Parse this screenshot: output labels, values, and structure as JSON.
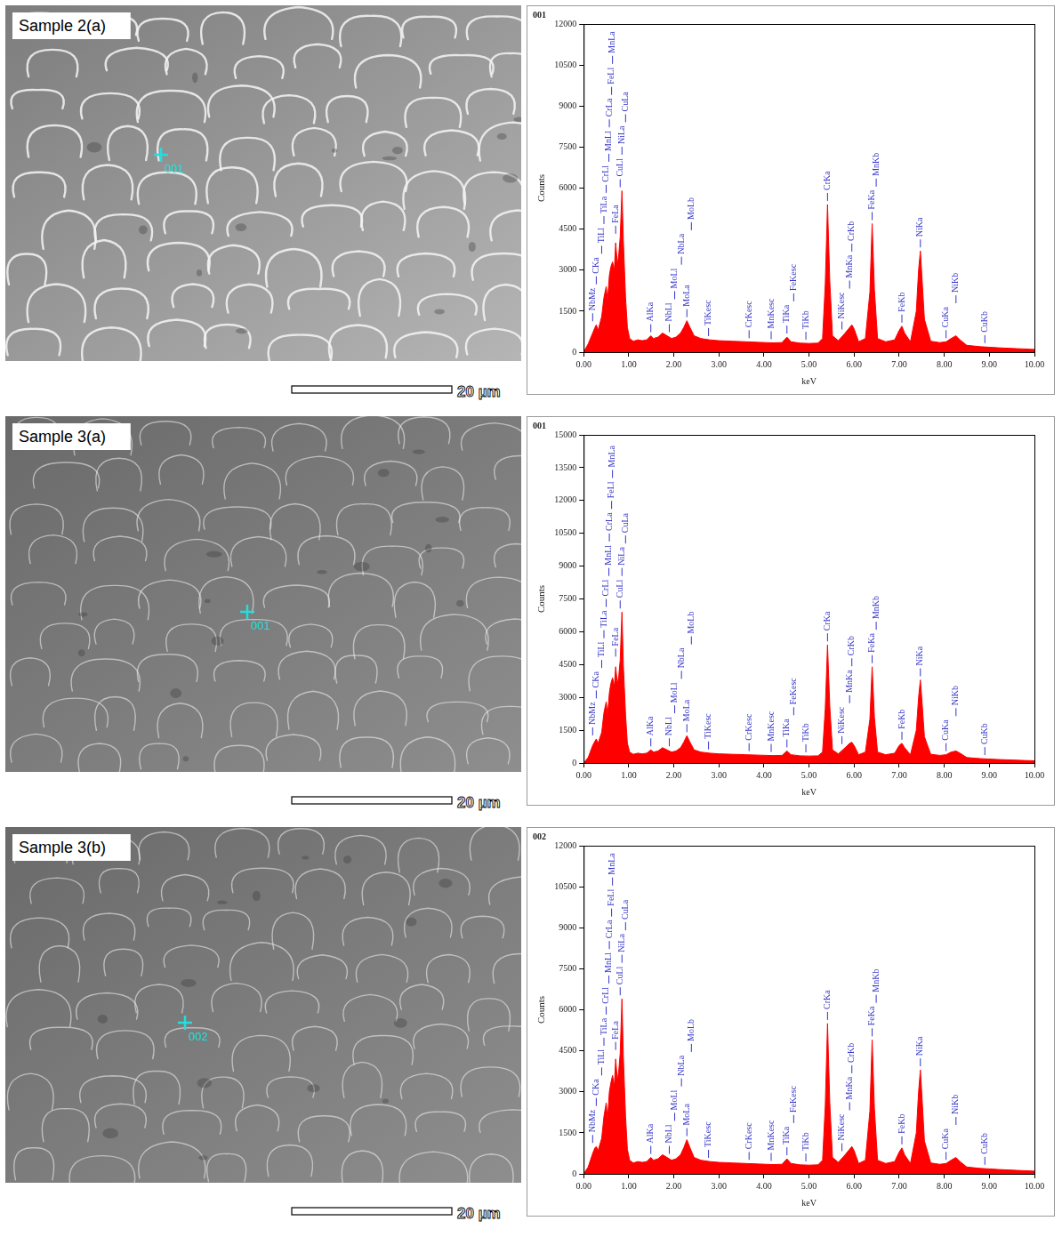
{
  "chart_data": [
    {
      "type": "area",
      "title": "001",
      "x_label": "keV",
      "y_label": "Counts",
      "color": "#ff0000",
      "xlim": [
        0,
        10
      ],
      "ylim": [
        0,
        12000
      ],
      "xticks": [
        {
          "value": 0,
          "label": "0.00"
        },
        {
          "value": 1,
          "label": "1.00"
        },
        {
          "value": 2,
          "label": "2.00"
        },
        {
          "value": 3,
          "label": "3.00"
        },
        {
          "value": 4,
          "label": "4.00"
        },
        {
          "value": 5,
          "label": "5.00"
        },
        {
          "value": 6,
          "label": "6.00"
        },
        {
          "value": 7,
          "label": "7.00"
        },
        {
          "value": 8,
          "label": "8.00"
        },
        {
          "value": 9,
          "label": "9.00"
        },
        {
          "value": 10,
          "label": "10.00"
        }
      ],
      "yticks": [
        0,
        1500,
        3000,
        4500,
        6000,
        7500,
        9000,
        10500,
        12000
      ],
      "x": [
        0.0,
        0.1,
        0.2,
        0.25,
        0.28,
        0.32,
        0.4,
        0.45,
        0.5,
        0.53,
        0.57,
        0.6,
        0.64,
        0.68,
        0.71,
        0.75,
        0.78,
        0.81,
        0.85,
        0.88,
        0.93,
        0.97,
        1.02,
        1.1,
        1.2,
        1.3,
        1.4,
        1.49,
        1.55,
        1.65,
        1.75,
        1.85,
        1.95,
        2.05,
        2.15,
        2.22,
        2.29,
        2.36,
        2.45,
        2.6,
        2.8,
        3.0,
        3.3,
        3.6,
        3.9,
        4.2,
        4.4,
        4.51,
        4.6,
        4.8,
        5.0,
        5.2,
        5.3,
        5.36,
        5.41,
        5.46,
        5.52,
        5.65,
        5.8,
        5.9,
        5.95,
        6.0,
        6.1,
        6.25,
        6.35,
        6.4,
        6.45,
        6.52,
        6.7,
        6.9,
        7.0,
        7.06,
        7.12,
        7.25,
        7.38,
        7.43,
        7.47,
        7.51,
        7.56,
        7.7,
        7.9,
        8.04,
        8.15,
        8.26,
        8.35,
        8.5,
        8.8,
        9.2,
        9.6,
        10.0
      ],
      "values": [
        0,
        300,
        700,
        900,
        1000,
        800,
        1300,
        2000,
        2400,
        1900,
        2800,
        3100,
        3300,
        3000,
        4000,
        3200,
        3600,
        4200,
        5900,
        4100,
        2000,
        900,
        500,
        400,
        450,
        420,
        450,
        600,
        500,
        550,
        700,
        600,
        500,
        550,
        700,
        900,
        1150,
        900,
        600,
        500,
        450,
        420,
        400,
        380,
        360,
        340,
        350,
        550,
        380,
        330,
        320,
        330,
        500,
        2500,
        5400,
        2600,
        600,
        420,
        700,
        900,
        1000,
        850,
        380,
        500,
        2200,
        4700,
        2300,
        500,
        380,
        450,
        800,
        950,
        700,
        380,
        1500,
        3000,
        3700,
        2600,
        1200,
        400,
        350,
        380,
        500,
        600,
        450,
        250,
        200,
        160,
        130,
        100
      ],
      "peak_labels": [
        {
          "label": "NbMz",
          "x": 0.2
        },
        {
          "label": "CKa",
          "x": 0.28
        },
        {
          "label": "TiLl",
          "x": 0.4
        },
        {
          "label": "TiLa",
          "x": 0.45
        },
        {
          "label": "CrLl",
          "x": 0.5
        },
        {
          "label": "MnLl",
          "x": 0.56
        },
        {
          "label": "CrLa",
          "x": 0.57
        },
        {
          "label": "FeLl",
          "x": 0.62
        },
        {
          "label": "MnLa",
          "x": 0.64
        },
        {
          "label": "FeLa",
          "x": 0.71
        },
        {
          "label": "CuLl",
          "x": 0.81
        },
        {
          "label": "NiLa",
          "x": 0.85
        },
        {
          "label": "CuLa",
          "x": 0.93
        },
        {
          "label": "AlKa",
          "x": 1.49
        },
        {
          "label": "NbLl",
          "x": 1.9
        },
        {
          "label": "MoLl",
          "x": 2.02
        },
        {
          "label": "NbLa",
          "x": 2.17
        },
        {
          "label": "MoLa",
          "x": 2.29
        },
        {
          "label": "MoLb",
          "x": 2.39
        },
        {
          "label": "TiKesc",
          "x": 2.77
        },
        {
          "label": "CrKesc",
          "x": 3.67
        },
        {
          "label": "MnKesc",
          "x": 4.16
        },
        {
          "label": "TiKa",
          "x": 4.51
        },
        {
          "label": "FeKesc",
          "x": 4.66
        },
        {
          "label": "TiKb",
          "x": 4.93
        },
        {
          "label": "CrKa",
          "x": 5.41
        },
        {
          "label": "NiKesc",
          "x": 5.73
        },
        {
          "label": "MnKa",
          "x": 5.9
        },
        {
          "label": "CrKb",
          "x": 5.95
        },
        {
          "label": "FeKa",
          "x": 6.4
        },
        {
          "label": "MnKb",
          "x": 6.49
        },
        {
          "label": "FeKb",
          "x": 7.06
        },
        {
          "label": "NiKa",
          "x": 7.47
        },
        {
          "label": "CuKa",
          "x": 8.04
        },
        {
          "label": "NiKb",
          "x": 8.26
        },
        {
          "label": "CuKb",
          "x": 8.9
        }
      ]
    },
    {
      "type": "area",
      "title": "001",
      "x_label": "keV",
      "y_label": "Counts",
      "color": "#ff0000",
      "xlim": [
        0,
        10
      ],
      "ylim": [
        0,
        15000
      ],
      "xticks": [
        {
          "value": 0,
          "label": "0.00"
        },
        {
          "value": 1,
          "label": "1.00"
        },
        {
          "value": 2,
          "label": "2.00"
        },
        {
          "value": 3,
          "label": "3.00"
        },
        {
          "value": 4,
          "label": "4.00"
        },
        {
          "value": 5,
          "label": "5.00"
        },
        {
          "value": 6,
          "label": "6.00"
        },
        {
          "value": 7,
          "label": "7.00"
        },
        {
          "value": 8,
          "label": "8.00"
        },
        {
          "value": 9,
          "label": "9.00"
        },
        {
          "value": 10,
          "label": "10.00"
        }
      ],
      "yticks": [
        0,
        1500,
        3000,
        4500,
        6000,
        7500,
        9000,
        10500,
        12000,
        13500,
        15000
      ],
      "x": [
        0.0,
        0.1,
        0.2,
        0.25,
        0.28,
        0.32,
        0.4,
        0.45,
        0.5,
        0.53,
        0.57,
        0.6,
        0.64,
        0.68,
        0.71,
        0.75,
        0.78,
        0.81,
        0.85,
        0.88,
        0.93,
        0.97,
        1.02,
        1.1,
        1.2,
        1.3,
        1.4,
        1.49,
        1.55,
        1.65,
        1.75,
        1.85,
        1.95,
        2.05,
        2.15,
        2.22,
        2.29,
        2.36,
        2.45,
        2.6,
        2.8,
        3.0,
        3.3,
        3.6,
        3.9,
        4.2,
        4.4,
        4.51,
        4.6,
        4.8,
        5.0,
        5.2,
        5.3,
        5.36,
        5.41,
        5.46,
        5.52,
        5.65,
        5.8,
        5.9,
        5.95,
        6.0,
        6.1,
        6.25,
        6.35,
        6.4,
        6.45,
        6.52,
        6.7,
        6.9,
        7.0,
        7.06,
        7.12,
        7.25,
        7.38,
        7.43,
        7.47,
        7.51,
        7.56,
        7.7,
        7.9,
        8.04,
        8.15,
        8.26,
        8.35,
        8.5,
        8.8,
        9.2,
        9.6,
        10.0
      ],
      "values": [
        0,
        250,
        800,
        1000,
        1100,
        900,
        1400,
        2300,
        2800,
        2200,
        3200,
        3600,
        3900,
        3500,
        4400,
        3600,
        4000,
        4700,
        6900,
        4500,
        2200,
        900,
        500,
        400,
        450,
        420,
        450,
        600,
        500,
        550,
        700,
        600,
        500,
        550,
        700,
        950,
        1250,
        950,
        600,
        500,
        450,
        420,
        400,
        380,
        360,
        340,
        350,
        550,
        380,
        330,
        320,
        330,
        500,
        2500,
        5400,
        2600,
        600,
        420,
        700,
        900,
        950,
        800,
        380,
        500,
        2000,
        4400,
        2100,
        500,
        380,
        450,
        800,
        900,
        700,
        380,
        1500,
        3000,
        3800,
        2700,
        1200,
        400,
        350,
        380,
        500,
        550,
        450,
        250,
        200,
        160,
        130,
        100
      ],
      "peak_labels": [
        {
          "label": "NbMz",
          "x": 0.2
        },
        {
          "label": "CKa",
          "x": 0.28
        },
        {
          "label": "TiLl",
          "x": 0.4
        },
        {
          "label": "TiLa",
          "x": 0.45
        },
        {
          "label": "CrLl",
          "x": 0.5
        },
        {
          "label": "MnLl",
          "x": 0.56
        },
        {
          "label": "CrLa",
          "x": 0.57
        },
        {
          "label": "FeLl",
          "x": 0.62
        },
        {
          "label": "MnLa",
          "x": 0.64
        },
        {
          "label": "FeLa",
          "x": 0.71
        },
        {
          "label": "CuLl",
          "x": 0.81
        },
        {
          "label": "NiLa",
          "x": 0.85
        },
        {
          "label": "CuLa",
          "x": 0.93
        },
        {
          "label": "AlKa",
          "x": 1.49
        },
        {
          "label": "NbLl",
          "x": 1.9
        },
        {
          "label": "MoLl",
          "x": 2.02
        },
        {
          "label": "NbLa",
          "x": 2.17
        },
        {
          "label": "MoLa",
          "x": 2.29
        },
        {
          "label": "MoLb",
          "x": 2.39
        },
        {
          "label": "TiKesc",
          "x": 2.77
        },
        {
          "label": "CrKesc",
          "x": 3.67
        },
        {
          "label": "MnKesc",
          "x": 4.16
        },
        {
          "label": "TiKa",
          "x": 4.51
        },
        {
          "label": "FeKesc",
          "x": 4.66
        },
        {
          "label": "TiKb",
          "x": 4.93
        },
        {
          "label": "CrKa",
          "x": 5.41
        },
        {
          "label": "NiKesc",
          "x": 5.73
        },
        {
          "label": "MnKa",
          "x": 5.9
        },
        {
          "label": "CrKb",
          "x": 5.95
        },
        {
          "label": "FeKa",
          "x": 6.4
        },
        {
          "label": "MnKb",
          "x": 6.49
        },
        {
          "label": "FeKb",
          "x": 7.06
        },
        {
          "label": "NiKa",
          "x": 7.47
        },
        {
          "label": "CuKa",
          "x": 8.04
        },
        {
          "label": "NiKb",
          "x": 8.26
        },
        {
          "label": "CuKb",
          "x": 8.9
        }
      ]
    },
    {
      "type": "area",
      "title": "002",
      "x_label": "keV",
      "y_label": "Counts",
      "color": "#ff0000",
      "xlim": [
        0,
        10
      ],
      "ylim": [
        0,
        12000
      ],
      "xticks": [
        {
          "value": 0,
          "label": "0.00"
        },
        {
          "value": 1,
          "label": "1.00"
        },
        {
          "value": 2,
          "label": "2.00"
        },
        {
          "value": 3,
          "label": "3.00"
        },
        {
          "value": 4,
          "label": "4.00"
        },
        {
          "value": 5,
          "label": "5.00"
        },
        {
          "value": 6,
          "label": "6.00"
        },
        {
          "value": 7,
          "label": "7.00"
        },
        {
          "value": 8,
          "label": "8.00"
        },
        {
          "value": 9,
          "label": "9.00"
        },
        {
          "value": 10,
          "label": "10.00"
        }
      ],
      "yticks": [
        0,
        1500,
        3000,
        4500,
        6000,
        7500,
        9000,
        10500,
        12000
      ],
      "x": [
        0.0,
        0.1,
        0.2,
        0.25,
        0.28,
        0.32,
        0.4,
        0.45,
        0.5,
        0.53,
        0.57,
        0.6,
        0.64,
        0.68,
        0.71,
        0.75,
        0.78,
        0.81,
        0.85,
        0.88,
        0.93,
        0.97,
        1.02,
        1.1,
        1.2,
        1.3,
        1.4,
        1.49,
        1.55,
        1.65,
        1.75,
        1.85,
        1.95,
        2.05,
        2.15,
        2.22,
        2.29,
        2.36,
        2.45,
        2.6,
        2.8,
        3.0,
        3.3,
        3.6,
        3.9,
        4.2,
        4.4,
        4.51,
        4.6,
        4.8,
        5.0,
        5.2,
        5.3,
        5.36,
        5.41,
        5.46,
        5.52,
        5.65,
        5.8,
        5.9,
        5.95,
        6.0,
        6.1,
        6.25,
        6.35,
        6.4,
        6.45,
        6.52,
        6.7,
        6.9,
        7.0,
        7.06,
        7.12,
        7.25,
        7.38,
        7.43,
        7.47,
        7.51,
        7.56,
        7.7,
        7.9,
        8.04,
        8.15,
        8.26,
        8.35,
        8.5,
        8.8,
        9.2,
        9.6,
        10.0
      ],
      "values": [
        0,
        250,
        750,
        950,
        1000,
        850,
        1300,
        2100,
        2600,
        2000,
        3000,
        3300,
        3600,
        3200,
        4200,
        3400,
        3800,
        4400,
        6400,
        4300,
        2100,
        900,
        500,
        400,
        450,
        420,
        450,
        600,
        500,
        550,
        700,
        600,
        500,
        550,
        700,
        950,
        1250,
        950,
        600,
        500,
        450,
        420,
        400,
        380,
        360,
        340,
        350,
        550,
        380,
        330,
        320,
        330,
        500,
        2500,
        5500,
        2600,
        600,
        420,
        700,
        900,
        1000,
        850,
        380,
        500,
        2300,
        4900,
        2400,
        500,
        380,
        450,
        800,
        950,
        700,
        380,
        1500,
        3000,
        3800,
        2700,
        1200,
        400,
        350,
        380,
        500,
        600,
        450,
        250,
        200,
        160,
        130,
        100
      ],
      "peak_labels": [
        {
          "label": "NbMz",
          "x": 0.2
        },
        {
          "label": "CKa",
          "x": 0.28
        },
        {
          "label": "TiLl",
          "x": 0.4
        },
        {
          "label": "TiLa",
          "x": 0.45
        },
        {
          "label": "CrLl",
          "x": 0.5
        },
        {
          "label": "MnLl",
          "x": 0.56
        },
        {
          "label": "CrLa",
          "x": 0.57
        },
        {
          "label": "FeLl",
          "x": 0.62
        },
        {
          "label": "MnLa",
          "x": 0.64
        },
        {
          "label": "FeLa",
          "x": 0.71
        },
        {
          "label": "CuLl",
          "x": 0.81
        },
        {
          "label": "NiLa",
          "x": 0.85
        },
        {
          "label": "CuLa",
          "x": 0.93
        },
        {
          "label": "AlKa",
          "x": 1.49
        },
        {
          "label": "NbLl",
          "x": 1.9
        },
        {
          "label": "MoLl",
          "x": 2.02
        },
        {
          "label": "NbLa",
          "x": 2.17
        },
        {
          "label": "MoLa",
          "x": 2.29
        },
        {
          "label": "MoLb",
          "x": 2.39
        },
        {
          "label": "TiKesc",
          "x": 2.77
        },
        {
          "label": "CrKesc",
          "x": 3.67
        },
        {
          "label": "MnKesc",
          "x": 4.16
        },
        {
          "label": "TiKa",
          "x": 4.51
        },
        {
          "label": "FeKesc",
          "x": 4.66
        },
        {
          "label": "TiKb",
          "x": 4.93
        },
        {
          "label": "CrKa",
          "x": 5.41
        },
        {
          "label": "NiKesc",
          "x": 5.73
        },
        {
          "label": "MnKa",
          "x": 5.9
        },
        {
          "label": "CrKb",
          "x": 5.95
        },
        {
          "label": "FeKa",
          "x": 6.4
        },
        {
          "label": "MnKb",
          "x": 6.49
        },
        {
          "label": "FeKb",
          "x": 7.06
        },
        {
          "label": "NiKa",
          "x": 7.47
        },
        {
          "label": "CuKa",
          "x": 8.04
        },
        {
          "label": "NiKb",
          "x": 8.26
        },
        {
          "label": "CuKb",
          "x": 8.9
        }
      ]
    }
  ],
  "micrographs": [
    {
      "label": "Sample 2(a)",
      "point": "001",
      "scale_bar": "20 µm"
    },
    {
      "label": "Sample 3(a)",
      "point": "001",
      "scale_bar": "20 µm"
    },
    {
      "label": "Sample 3(b)",
      "point": "002",
      "scale_bar": "20 µm"
    }
  ]
}
